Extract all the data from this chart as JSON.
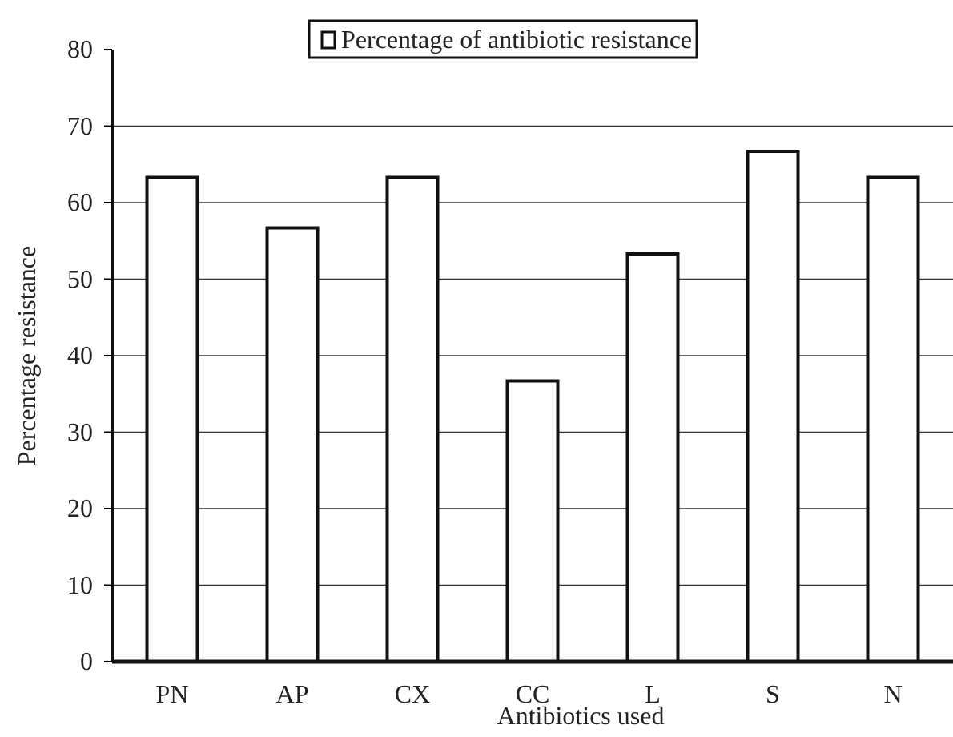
{
  "chart_data": {
    "type": "bar",
    "xlabel": "Antibiotics used",
    "ylabel": "Percentage resistance",
    "categories": [
      "PN",
      "AP",
      "CX",
      "CC",
      "L",
      "S",
      "N"
    ],
    "series": [
      {
        "name": "Percentage of antibiotic resistance",
        "color": "#ffffff",
        "values": [
          63.3,
          56.7,
          63.3,
          36.7,
          53.3,
          66.7,
          63.3
        ]
      }
    ],
    "ylim": [
      0,
      80
    ],
    "yticks": [
      0,
      10,
      20,
      30,
      40,
      50,
      60,
      70,
      80
    ],
    "grid": "y",
    "legend": "top"
  }
}
